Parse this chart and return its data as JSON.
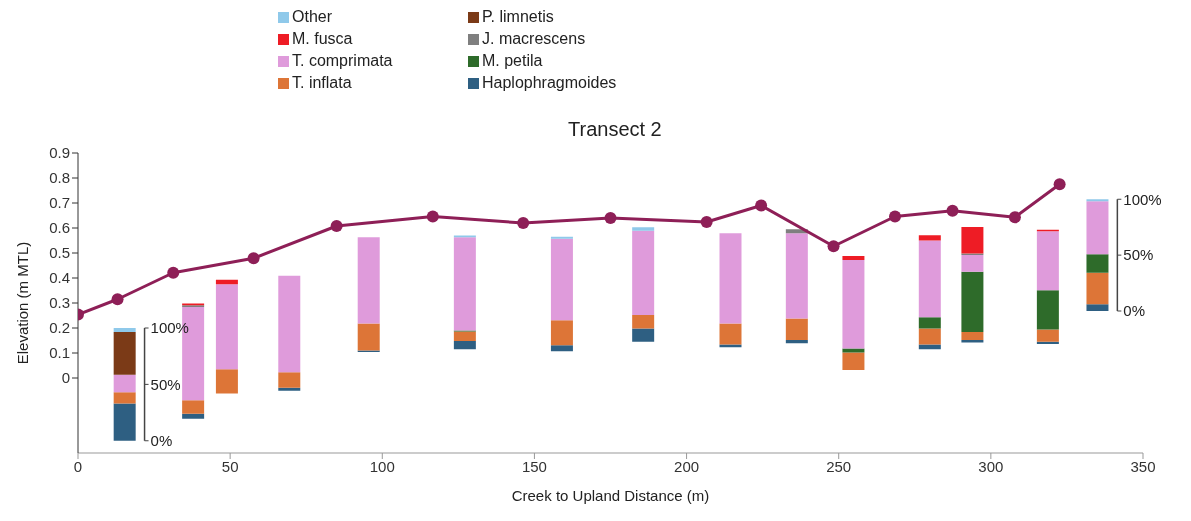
{
  "chart_data": {
    "type": "bar",
    "title": "Transect 2",
    "xlabel": "Creek to Upland Distance (m)",
    "ylabel": "Elevation (m MTL)",
    "legend": "top left",
    "marker": "circle",
    "xlim": [
      0,
      350
    ],
    "xticks": [
      0,
      50,
      100,
      150,
      200,
      250,
      300,
      350
    ],
    "ylim": [
      -0.3,
      0.9
    ],
    "yticks": [
      0,
      0.1,
      0.2,
      0.3,
      0.4,
      0.5,
      0.6,
      0.7,
      0.8,
      0.9
    ],
    "x": [
      15.3,
      37.8,
      48.9,
      69.4,
      95.5,
      127.1,
      159,
      185.7,
      214.4,
      236.2,
      254.8,
      279.9,
      293.9,
      318.7,
      335
    ],
    "series": [
      {
        "name": "Haplophragmoides",
        "color": "#2e5f82",
        "values": [
          0.149,
          0.02,
          null,
          0.012,
          0.006,
          0.033,
          0.024,
          0.053,
          0.011,
          0.013,
          null,
          0.019,
          0.01,
          0.009,
          0.027
        ],
        "base": [
          -0.251,
          -0.163,
          null,
          -0.051,
          0.104,
          0.115,
          0.107,
          0.145,
          0.123,
          0.139,
          null,
          0.115,
          0.142,
          0.136,
          0.268
        ]
      },
      {
        "name": "T. inflata",
        "color": "#dd7537",
        "values": [
          0.045,
          0.054,
          0.097,
          0.062,
          0.108,
          0.038,
          0.1,
          0.054,
          0.084,
          0.086,
          0.07,
          0.064,
          0.032,
          0.049,
          0.126
        ],
        "base": [
          -0.102,
          -0.143,
          -0.062,
          -0.039,
          0.11,
          0.148,
          0.131,
          0.198,
          0.134,
          0.152,
          0.032,
          0.134,
          0.152,
          0.145,
          0.295
        ]
      },
      {
        "name": "M. petila",
        "color": "#2e6b2a",
        "values": [
          null,
          null,
          null,
          null,
          null,
          0.004,
          null,
          null,
          null,
          null,
          0.016,
          0.045,
          0.241,
          0.157,
          0.074
        ],
        "base": [
          null,
          null,
          null,
          null,
          null,
          0.186,
          null,
          null,
          null,
          null,
          0.102,
          0.198,
          0.184,
          0.194,
          0.421
        ]
      },
      {
        "name": "T. comprimata",
        "color": "#df9bdb",
        "values": [
          0.07,
          0.373,
          0.34,
          0.386,
          0.345,
          0.373,
          0.326,
          0.337,
          0.361,
          0.341,
          0.354,
          0.307,
          0.067,
          0.236,
          0.212
        ],
        "base": [
          -0.057,
          -0.089,
          0.035,
          0.023,
          0.218,
          0.19,
          0.231,
          0.252,
          0.218,
          0.238,
          0.118,
          0.243,
          0.425,
          0.351,
          0.495
        ]
      },
      {
        "name": "J. macrescens",
        "color": "#7f7f7f",
        "values": [
          null,
          0.007,
          null,
          null,
          null,
          null,
          null,
          null,
          null,
          0.016,
          null,
          null,
          0.006,
          null,
          null
        ],
        "base": [
          null,
          0.284,
          null,
          null,
          null,
          null,
          null,
          null,
          null,
          0.579,
          null,
          null,
          0.492,
          null,
          null
        ]
      },
      {
        "name": "M. fusca",
        "color": "#ee1c25",
        "values": [
          null,
          0.007,
          0.018,
          null,
          null,
          null,
          null,
          null,
          null,
          null,
          0.016,
          0.021,
          0.106,
          0.006,
          null
        ],
        "base": [
          null,
          0.291,
          0.375,
          null,
          null,
          null,
          null,
          null,
          null,
          null,
          0.472,
          0.55,
          0.498,
          0.587,
          null
        ]
      },
      {
        "name": "P. limnetis",
        "color": "#7b3a17",
        "values": [
          0.171,
          null,
          null,
          null,
          null,
          null,
          null,
          null,
          null,
          null,
          null,
          null,
          null,
          null,
          null
        ],
        "base": [
          0.013,
          null,
          null,
          null,
          null,
          null,
          null,
          null,
          null,
          null,
          null,
          null,
          null,
          null,
          null
        ]
      },
      {
        "name": "Other",
        "color": "#8fc9ea",
        "values": [
          0.016,
          null,
          null,
          null,
          null,
          0.007,
          0.008,
          0.014,
          null,
          null,
          null,
          null,
          null,
          null,
          0.008
        ],
        "base": [
          0.184,
          null,
          null,
          null,
          null,
          0.563,
          0.557,
          0.589,
          null,
          null,
          null,
          null,
          null,
          null,
          0.707
        ]
      },
      {
        "type": "line",
        "color": "#8e1f57",
        "x": [
          0,
          13,
          31.3,
          57.7,
          85,
          116.6,
          146.3,
          175,
          206.6,
          224.5,
          248.3,
          268.5,
          287.4,
          307.9,
          322.6
        ],
        "values": [
          0.254,
          0.315,
          0.421,
          0.479,
          0.608,
          0.646,
          0.62,
          0.64,
          0.624,
          0.69,
          0.527,
          0.646,
          0.669,
          0.643,
          0.775
        ]
      }
    ],
    "annotations": [
      "100%",
      "50%",
      "0%",
      "100%",
      "50%",
      "0%"
    ]
  }
}
